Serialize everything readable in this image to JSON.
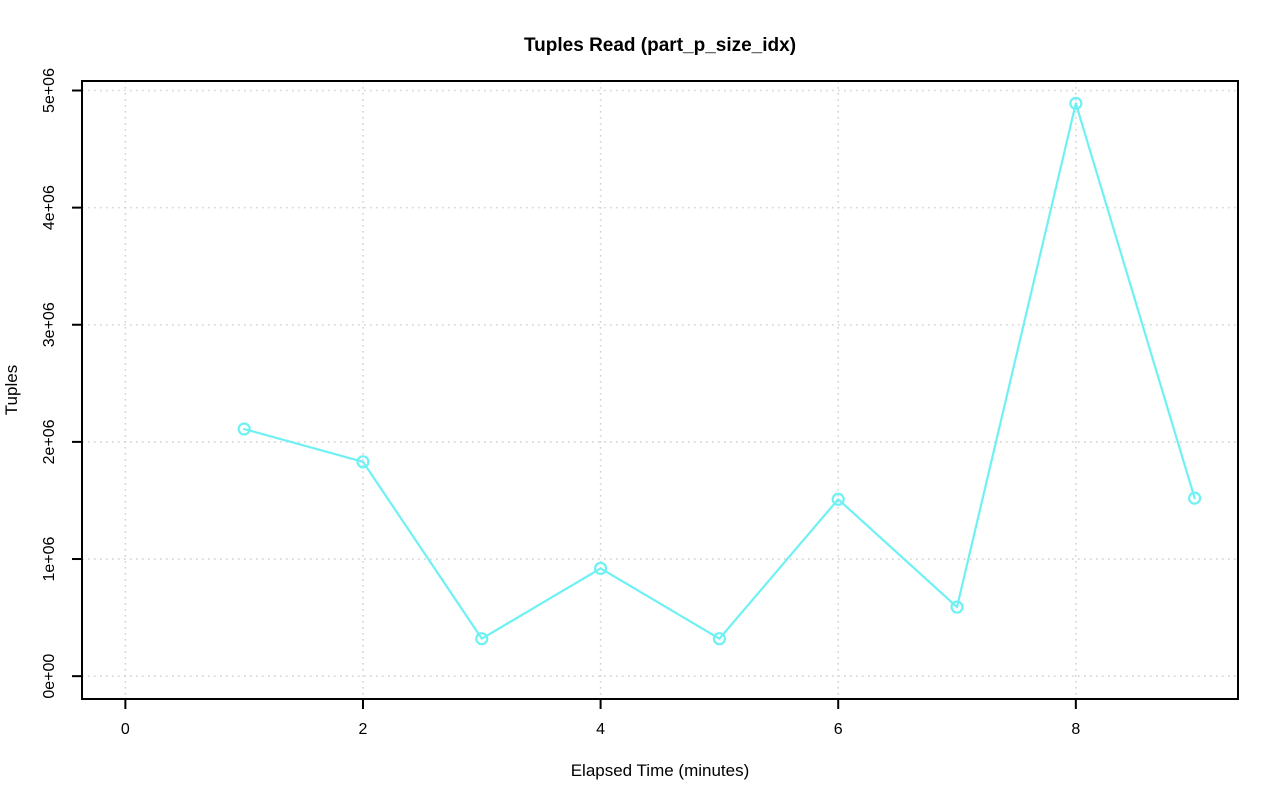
{
  "chart_data": {
    "type": "line",
    "title": "Tuples Read (part_p_size_idx)",
    "xlabel": "Elapsed Time (minutes)",
    "ylabel": "Tuples",
    "x": [
      1,
      2,
      3,
      4,
      5,
      6,
      7,
      8,
      9
    ],
    "series": [
      {
        "name": "tuples-read",
        "values": [
          2110000,
          1830000,
          320000,
          920000,
          320000,
          1510000,
          590000,
          4890000,
          1520000
        ]
      }
    ],
    "marker": "open-circle",
    "line_color": "#6FF1F4",
    "grid": "dotted",
    "grid_color": "#D4D4D4",
    "axis_color": "#000000",
    "background": "#FFFFFF",
    "legend": "none",
    "xlim": [
      -0.365,
      9.365
    ],
    "ylim": [
      -195000,
      5081000
    ],
    "x_ticks": {
      "values": [
        0,
        2,
        4,
        6,
        8
      ],
      "labels": [
        "0",
        "2",
        "4",
        "6",
        "8"
      ]
    },
    "y_ticks": {
      "values": [
        0,
        1000000,
        2000000,
        3000000,
        4000000,
        5000000
      ],
      "labels": [
        "0e+00",
        "1e+06",
        "2e+06",
        "3e+06",
        "4e+06",
        "5e+06"
      ]
    }
  }
}
